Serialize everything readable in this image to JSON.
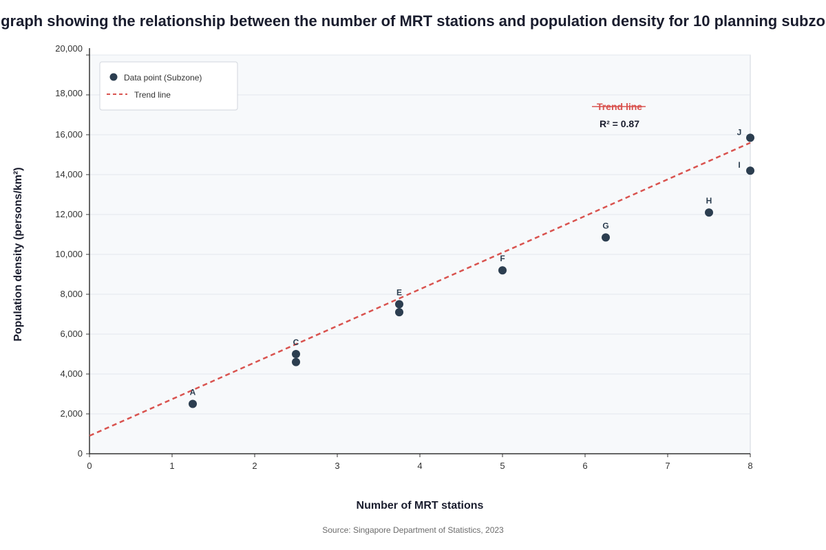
{
  "chart_data": {
    "type": "scatter",
    "title": "graph showing the relationship between the number of MRT stations and population density for 10 planning subzo",
    "xlabel": "Number of MRT stations",
    "ylabel": "Population density (persons/km²)",
    "xlim": [
      0,
      8
    ],
    "ylim": [
      0,
      20000
    ],
    "x_ticks": [
      0,
      1,
      2,
      3,
      4,
      5,
      6,
      7,
      8
    ],
    "x_tick_labels": [
      "0",
      "1",
      "2",
      "3",
      "4",
      "5",
      "6",
      "7",
      "8"
    ],
    "y_ticks": [
      0,
      2000,
      4000,
      6000,
      8000,
      10000,
      12000,
      14000,
      16000,
      18000,
      20000
    ],
    "y_tick_labels": [
      "0",
      "2,000",
      "4,000",
      "6,000",
      "8,000",
      "10,000",
      "12,000",
      "14,000",
      "16,000",
      "18,000",
      "20,000"
    ],
    "grid": true,
    "legend_position": "top-left",
    "series": [
      {
        "name": "Data point (Subzone)",
        "color": "#2c3e50",
        "points": [
          {
            "x": 1.25,
            "y": 2500,
            "label": "A"
          },
          {
            "x": 2.5,
            "y": 4600,
            "label": ""
          },
          {
            "x": 2.5,
            "y": 5000,
            "label": "C"
          },
          {
            "x": 3.75,
            "y": 7100,
            "label": ""
          },
          {
            "x": 3.75,
            "y": 7500,
            "label": "E"
          },
          {
            "x": 5,
            "y": 9200,
            "label": "F"
          },
          {
            "x": 6.25,
            "y": 10850,
            "label": "G"
          },
          {
            "x": 7.5,
            "y": 12100,
            "label": "H"
          },
          {
            "x": 8,
            "y": 14200,
            "label": "I"
          },
          {
            "x": 8,
            "y": 15850,
            "label": "J"
          }
        ]
      }
    ],
    "trend_line": {
      "name": "Trend line",
      "color": "#d9534f",
      "style": "dashed",
      "start": {
        "x": 0,
        "y": 900
      },
      "end": {
        "x": 8,
        "y": 15600
      }
    },
    "annotations": {
      "trend_label": "Trend line",
      "r_squared": "R² = 0.87"
    }
  },
  "source": "Source: Singapore Department of Statistics, 2023"
}
